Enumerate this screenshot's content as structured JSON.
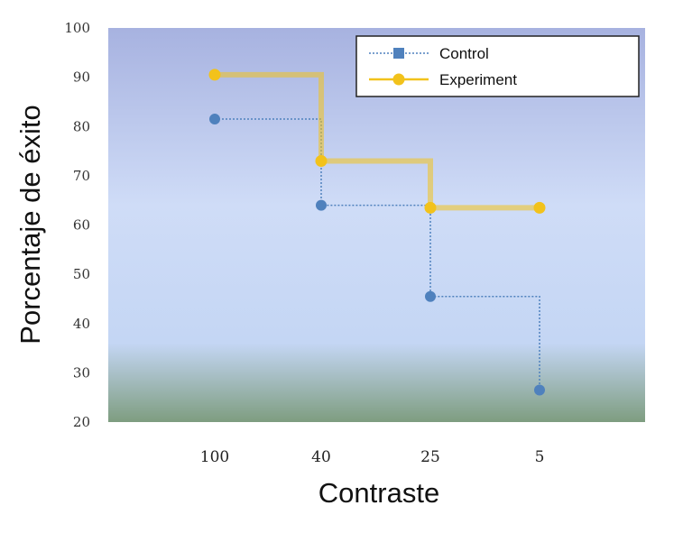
{
  "chart_data": {
    "type": "line",
    "step": true,
    "xlabel": "Contraste",
    "ylabel": "Porcentaje de éxito",
    "categories": [
      "100",
      "40",
      "25",
      "5"
    ],
    "ylim": [
      20,
      100
    ],
    "yticks": [
      "20",
      "30",
      "40",
      "50",
      "60",
      "70",
      "80",
      "90",
      "100"
    ],
    "grid": false,
    "legend_position": "top-right",
    "series": [
      {
        "name": "Control",
        "values": [
          81.5,
          64,
          45.5,
          26.5
        ],
        "color": "#4f81bd",
        "marker": "square",
        "line_style": "dotted"
      },
      {
        "name": "Experiment",
        "values": [
          90.5,
          73,
          63.5,
          63.5
        ],
        "color": "#f2c21b",
        "marker": "circle",
        "line_style": "solid"
      }
    ],
    "background_gradient": [
      "#a7b2e0",
      "#cfdcf7",
      "#c4d6f4",
      "#7e9d80"
    ]
  }
}
